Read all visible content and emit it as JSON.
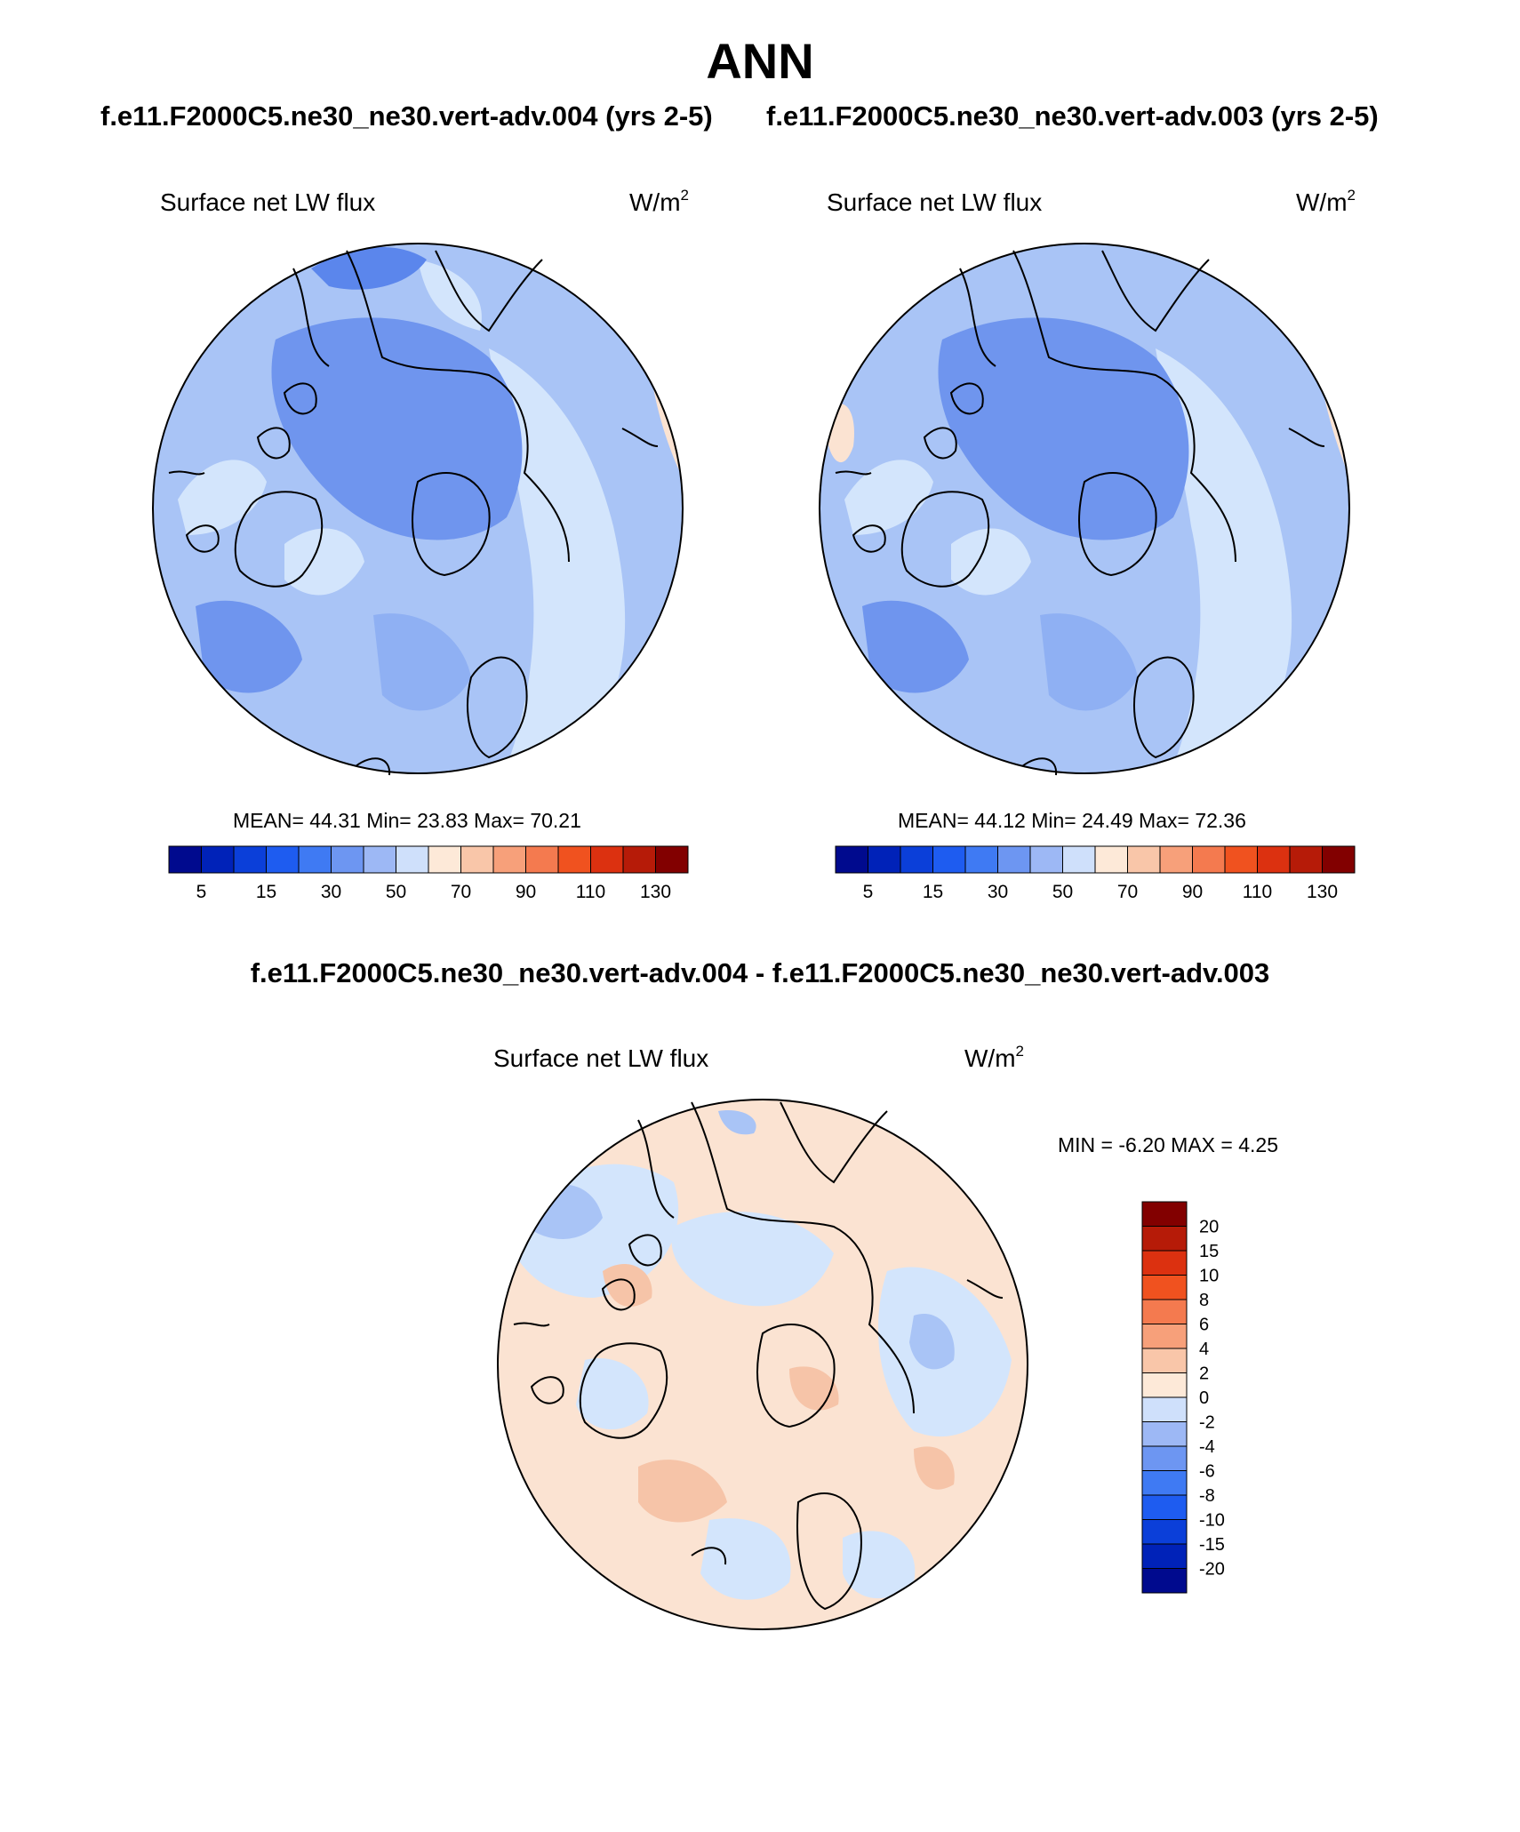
{
  "figure": {
    "title": "ANN",
    "case_titles": {
      "left": "f.e11.F2000C5.ne30_ne30.vert-adv.004 (yrs 2-5)",
      "right": "f.e11.F2000C5.ne30_ne30.vert-adv.003 (yrs 2-5)"
    },
    "diff_title": "f.e11.F2000C5.ne30_ne30.vert-adv.004 - f.e11.F2000C5.ne30_ne30.vert-adv.003"
  },
  "panels": [
    {
      "variable": "Surface net LW flux",
      "units": "W/m",
      "units_exp": "2",
      "stats_text": "MEAN=  44.31  Min=  23.83  Max=  70.21",
      "mean": 44.31,
      "min": 23.83,
      "max": 70.21
    },
    {
      "variable": "Surface net LW flux",
      "units": "W/m",
      "units_exp": "2",
      "stats_text": "MEAN=  44.12  Min=  24.49  Max=  72.36",
      "mean": 44.12,
      "min": 24.49,
      "max": 72.36
    },
    {
      "variable": "Surface net LW flux",
      "units": "W/m",
      "units_exp": "2",
      "stats_text": "MIN =  -6.20 MAX =   4.25",
      "min": -6.2,
      "max": 4.25
    }
  ],
  "colorbar_main": {
    "colors": [
      "#000a8e",
      "#0022b8",
      "#0b3fd9",
      "#1e5cf0",
      "#3f7af3",
      "#6d96f2",
      "#9db8f5",
      "#cfe0fb",
      "#fde9d8",
      "#f9c6a9",
      "#f7a07a",
      "#f47a4f",
      "#f0521f",
      "#dc3110",
      "#b61b08",
      "#820000"
    ],
    "tick_labels": [
      "5",
      "15",
      "30",
      "50",
      "70",
      "90",
      "110",
      "130"
    ]
  },
  "colorbar_diff": {
    "colors": [
      "#000a8e",
      "#0022b8",
      "#0b3fd9",
      "#1e5cf0",
      "#3f7af3",
      "#6d96f2",
      "#9db8f5",
      "#cfe0fb",
      "#fde9d8",
      "#f9c6a9",
      "#f7a07a",
      "#f47a4f",
      "#f0521f",
      "#dc3110",
      "#b61b08",
      "#820000"
    ],
    "tick_labels": [
      "20",
      "15",
      "10",
      "8",
      "6",
      "4",
      "2",
      "0",
      "-2",
      "-4",
      "-6",
      "-8",
      "-10",
      "-15",
      "-20"
    ]
  },
  "map_colors": {
    "main_background": "#a9c4f6",
    "main_light": "#d3e5fc",
    "main_mid": "#8fb0f3",
    "main_dark": "#6f95ee",
    "main_darker": "#5b86ec",
    "main_peach": "#fbe3d2",
    "diff_background": "#fbe3d2",
    "diff_light_blue": "#d3e5fc",
    "diff_blue": "#a9c4f6",
    "diff_peach": "#f6c4a8",
    "coast": "#000000"
  }
}
